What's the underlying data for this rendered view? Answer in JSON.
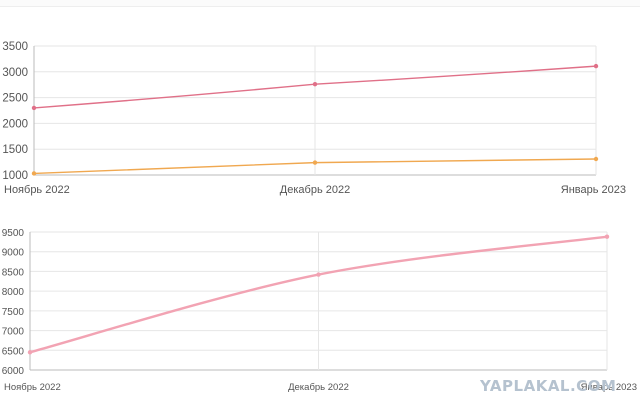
{
  "colors": {
    "pink": "#e07088",
    "orange": "#f0a850",
    "pink_light": "#f2a3b3",
    "grid": "#e6e6e6",
    "axis": "#bbbbbb",
    "watermark": "#b5c2cf"
  },
  "watermark": "YAPLAKAL.COM",
  "chart_data": [
    {
      "type": "line",
      "title": "",
      "x": [
        "Ноябрь 2022",
        "Декабрь 2022",
        "Январь 2023"
      ],
      "yticks": [
        1000,
        1500,
        2000,
        2500,
        3000,
        3500
      ],
      "ylim": [
        1000,
        3500
      ],
      "grid": true,
      "series": [
        {
          "values": [
            2300,
            2760,
            3110
          ],
          "color": "pink"
        },
        {
          "values": [
            1030,
            1240,
            1310
          ],
          "color": "orange"
        }
      ]
    },
    {
      "type": "line",
      "title": "",
      "x": [
        "Ноябрь 2022",
        "Декабрь 2022",
        "Январь 2023"
      ],
      "yticks": [
        6000,
        6500,
        7000,
        7500,
        8000,
        8500,
        9000,
        9500
      ],
      "ylim": [
        6000,
        9500
      ],
      "grid": true,
      "series": [
        {
          "values": [
            6450,
            8420,
            9380
          ],
          "color": "pink_light"
        }
      ]
    }
  ]
}
